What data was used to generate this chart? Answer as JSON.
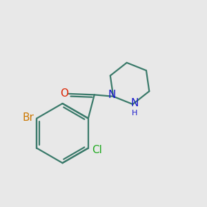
{
  "bg_color": "#e8e8e8",
  "bond_color": "#3a7a6a",
  "bond_width": 1.6,
  "N_color": "#1a1acc",
  "O_color": "#dd2200",
  "Br_color": "#cc7700",
  "Cl_color": "#22aa22",
  "font_size_atoms": 11,
  "font_size_H": 8,
  "xlim": [
    0,
    10
  ],
  "ylim": [
    0,
    10
  ]
}
